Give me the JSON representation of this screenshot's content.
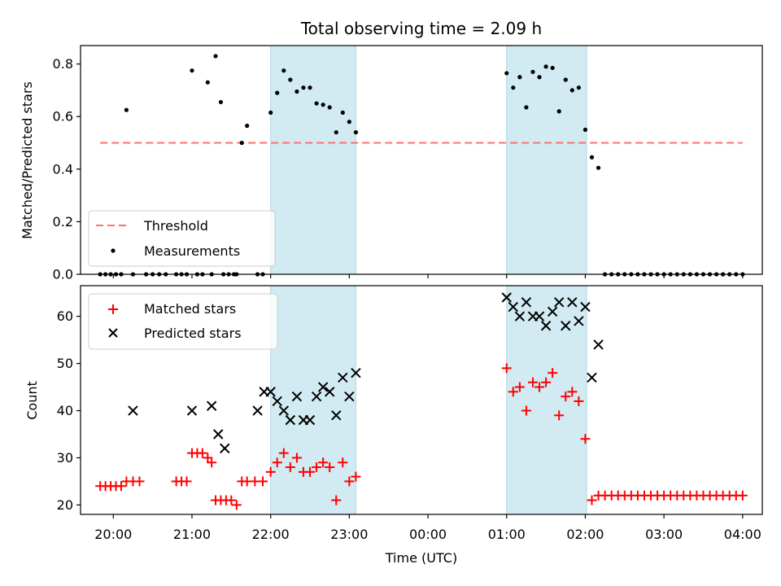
{
  "chart_data": {
    "type": "scatter",
    "title": "Total observing time = 2.09 h",
    "xlabel": "Time (UTC)",
    "x_ticks": [
      "20:00",
      "21:00",
      "22:00",
      "23:00",
      "00:00",
      "01:00",
      "02:00",
      "03:00",
      "04:00"
    ],
    "x_tick_values": [
      0,
      60,
      120,
      180,
      240,
      300,
      360,
      420,
      480
    ],
    "xlim": [
      -25,
      495
    ],
    "shaded_intervals": [
      {
        "start": 120,
        "end": 185
      },
      {
        "start": 300,
        "end": 361
      }
    ],
    "colors": {
      "shade": "#add8e6",
      "threshold": "#ff7070",
      "measurements": "#000000",
      "matched": "#ff0000",
      "predicted": "#000000"
    },
    "top": {
      "ylabel": "Matched/Predicted stars",
      "ylim": [
        0,
        0.87
      ],
      "y_ticks": [
        "0.0",
        "0.2",
        "0.4",
        "0.6",
        "0.8"
      ],
      "y_tick_values": [
        0,
        0.2,
        0.4,
        0.6,
        0.8
      ],
      "legend": [
        "Threshold",
        "Measurements"
      ],
      "threshold": {
        "x_start": -10,
        "x_end": 480,
        "y": 0.5
      },
      "measurements": [
        [
          -10,
          0
        ],
        [
          -6,
          0
        ],
        [
          -2,
          0
        ],
        [
          2,
          0
        ],
        [
          6,
          0
        ],
        [
          10,
          0.625
        ],
        [
          15,
          0
        ],
        [
          25,
          0
        ],
        [
          30,
          0
        ],
        [
          35,
          0
        ],
        [
          40,
          0
        ],
        [
          48,
          0
        ],
        [
          52,
          0
        ],
        [
          56,
          0
        ],
        [
          60,
          0.775
        ],
        [
          64,
          0
        ],
        [
          68,
          0
        ],
        [
          72,
          0.73
        ],
        [
          75,
          0
        ],
        [
          78,
          0.83
        ],
        [
          82,
          0.655
        ],
        [
          84,
          0
        ],
        [
          88,
          0
        ],
        [
          92,
          0
        ],
        [
          94,
          0
        ],
        [
          98,
          0.5
        ],
        [
          102,
          0.565
        ],
        [
          110,
          0
        ],
        [
          114,
          0
        ],
        [
          120,
          0.615
        ],
        [
          125,
          0.69
        ],
        [
          130,
          0.775
        ],
        [
          135,
          0.74
        ],
        [
          140,
          0.695
        ],
        [
          145,
          0.71
        ],
        [
          150,
          0.71
        ],
        [
          155,
          0.65
        ],
        [
          160,
          0.645
        ],
        [
          165,
          0.635
        ],
        [
          170,
          0.54
        ],
        [
          175,
          0.615
        ],
        [
          180,
          0.58
        ],
        [
          185,
          0.54
        ],
        [
          300,
          0.765
        ],
        [
          305,
          0.71
        ],
        [
          310,
          0.75
        ],
        [
          315,
          0.635
        ],
        [
          320,
          0.77
        ],
        [
          325,
          0.75
        ],
        [
          330,
          0.79
        ],
        [
          335,
          0.785
        ],
        [
          340,
          0.62
        ],
        [
          345,
          0.74
        ],
        [
          350,
          0.7
        ],
        [
          355,
          0.71
        ],
        [
          360,
          0.55
        ],
        [
          365,
          0.445
        ],
        [
          370,
          0.405
        ],
        [
          375,
          0
        ],
        [
          380,
          0
        ],
        [
          385,
          0
        ],
        [
          390,
          0
        ],
        [
          395,
          0
        ],
        [
          400,
          0
        ],
        [
          405,
          0
        ],
        [
          410,
          0
        ],
        [
          415,
          0
        ],
        [
          420,
          0
        ],
        [
          425,
          0
        ],
        [
          430,
          0
        ],
        [
          435,
          0
        ],
        [
          440,
          0
        ],
        [
          445,
          0
        ],
        [
          450,
          0
        ],
        [
          455,
          0
        ],
        [
          460,
          0
        ],
        [
          465,
          0
        ],
        [
          470,
          0
        ],
        [
          475,
          0
        ],
        [
          480,
          0
        ]
      ]
    },
    "bottom": {
      "ylabel": "Count",
      "ylim": [
        18,
        66.5
      ],
      "y_ticks": [
        "20",
        "30",
        "40",
        "50",
        "60"
      ],
      "y_tick_values": [
        20,
        30,
        40,
        50,
        60
      ],
      "legend": [
        "Matched stars",
        "Predicted stars"
      ],
      "matched": [
        [
          -10,
          24
        ],
        [
          -6,
          24
        ],
        [
          -2,
          24
        ],
        [
          2,
          24
        ],
        [
          6,
          24
        ],
        [
          10,
          25
        ],
        [
          15,
          25
        ],
        [
          20,
          25
        ],
        [
          48,
          25
        ],
        [
          52,
          25
        ],
        [
          56,
          25
        ],
        [
          60,
          31
        ],
        [
          64,
          31
        ],
        [
          68,
          31
        ],
        [
          72,
          30
        ],
        [
          75,
          29
        ],
        [
          78,
          21
        ],
        [
          82,
          21
        ],
        [
          86,
          21
        ],
        [
          90,
          21
        ],
        [
          94,
          20
        ],
        [
          98,
          25
        ],
        [
          102,
          25
        ],
        [
          108,
          25
        ],
        [
          114,
          25
        ],
        [
          120,
          27
        ],
        [
          125,
          29
        ],
        [
          130,
          31
        ],
        [
          135,
          28
        ],
        [
          140,
          30
        ],
        [
          145,
          27
        ],
        [
          150,
          27
        ],
        [
          155,
          28
        ],
        [
          160,
          29
        ],
        [
          165,
          28
        ],
        [
          170,
          21
        ],
        [
          175,
          29
        ],
        [
          180,
          25
        ],
        [
          185,
          26
        ],
        [
          300,
          49
        ],
        [
          305,
          44
        ],
        [
          310,
          45
        ],
        [
          315,
          40
        ],
        [
          320,
          46
        ],
        [
          325,
          45
        ],
        [
          330,
          46
        ],
        [
          335,
          48
        ],
        [
          340,
          39
        ],
        [
          345,
          43
        ],
        [
          350,
          44
        ],
        [
          355,
          42
        ],
        [
          360,
          34
        ],
        [
          365,
          21
        ],
        [
          370,
          22
        ],
        [
          375,
          22
        ],
        [
          380,
          22
        ],
        [
          385,
          22
        ],
        [
          390,
          22
        ],
        [
          395,
          22
        ],
        [
          400,
          22
        ],
        [
          405,
          22
        ],
        [
          410,
          22
        ],
        [
          415,
          22
        ],
        [
          420,
          22
        ],
        [
          425,
          22
        ],
        [
          430,
          22
        ],
        [
          435,
          22
        ],
        [
          440,
          22
        ],
        [
          445,
          22
        ],
        [
          450,
          22
        ],
        [
          455,
          22
        ],
        [
          460,
          22
        ],
        [
          465,
          22
        ],
        [
          470,
          22
        ],
        [
          475,
          22
        ],
        [
          480,
          22
        ]
      ],
      "predicted": [
        [
          15,
          40
        ],
        [
          60,
          40
        ],
        [
          75,
          41
        ],
        [
          80,
          35
        ],
        [
          85,
          32
        ],
        [
          110,
          40
        ],
        [
          115,
          44
        ],
        [
          120,
          44
        ],
        [
          125,
          42
        ],
        [
          130,
          40
        ],
        [
          135,
          38
        ],
        [
          140,
          43
        ],
        [
          145,
          38
        ],
        [
          150,
          38
        ],
        [
          155,
          43
        ],
        [
          160,
          45
        ],
        [
          165,
          44
        ],
        [
          170,
          39
        ],
        [
          175,
          47
        ],
        [
          180,
          43
        ],
        [
          185,
          48
        ],
        [
          300,
          64
        ],
        [
          305,
          62
        ],
        [
          310,
          60
        ],
        [
          315,
          63
        ],
        [
          320,
          60
        ],
        [
          325,
          60
        ],
        [
          330,
          58
        ],
        [
          335,
          61
        ],
        [
          340,
          63
        ],
        [
          345,
          58
        ],
        [
          350,
          63
        ],
        [
          355,
          59
        ],
        [
          360,
          62
        ],
        [
          365,
          47
        ],
        [
          370,
          54
        ]
      ]
    }
  }
}
